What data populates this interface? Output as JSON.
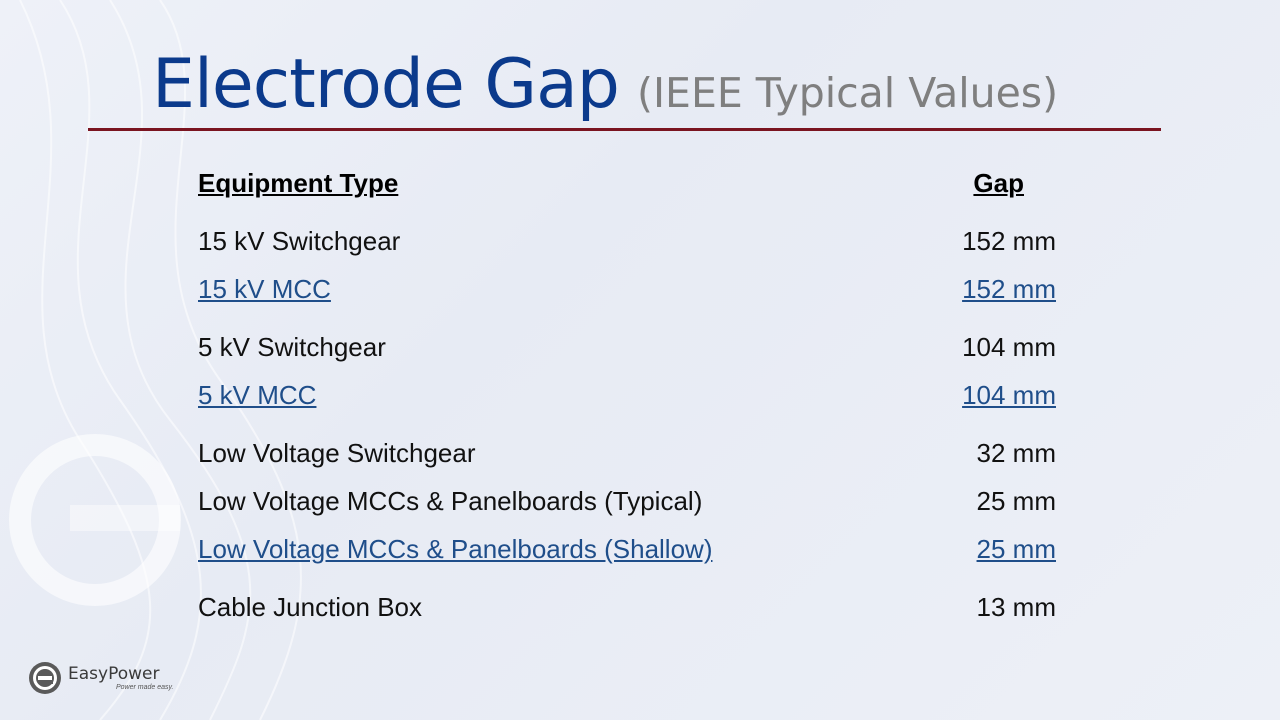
{
  "title": {
    "main": "Electrode Gap",
    "sub": "(IEEE Typical Values)"
  },
  "table": {
    "headers": {
      "type": "Equipment Type",
      "gap": "Gap"
    },
    "rows": [
      {
        "type": "15 kV Switchgear",
        "gap": "152 mm",
        "style": "plain"
      },
      {
        "type": "15 kV MCC",
        "gap": "152 mm",
        "style": "link"
      },
      {
        "type": "5 kV Switchgear",
        "gap": "104 mm",
        "style": "plain"
      },
      {
        "type": "5 kV MCC",
        "gap": "104 mm",
        "style": "link"
      },
      {
        "type": "Low Voltage Switchgear",
        "gap": "32 mm",
        "style": "plain"
      },
      {
        "type": "Low Voltage MCCs & Panelboards (Typical)",
        "gap": "25 mm",
        "style": "plain"
      },
      {
        "type": "Low Voltage MCCs & Panelboards (Shallow)",
        "gap": "25 mm",
        "style": "link"
      },
      {
        "type": "Cable Junction Box",
        "gap": "13 mm",
        "style": "plain"
      }
    ]
  },
  "logo": {
    "name_easy": "Easy",
    "name_power": "Power",
    "tagline": "Power made easy."
  },
  "colors": {
    "title": "#0b3a8c",
    "subtitle": "#7f7f7f",
    "rule": "#7a1420",
    "link": "#1f4e8a"
  }
}
